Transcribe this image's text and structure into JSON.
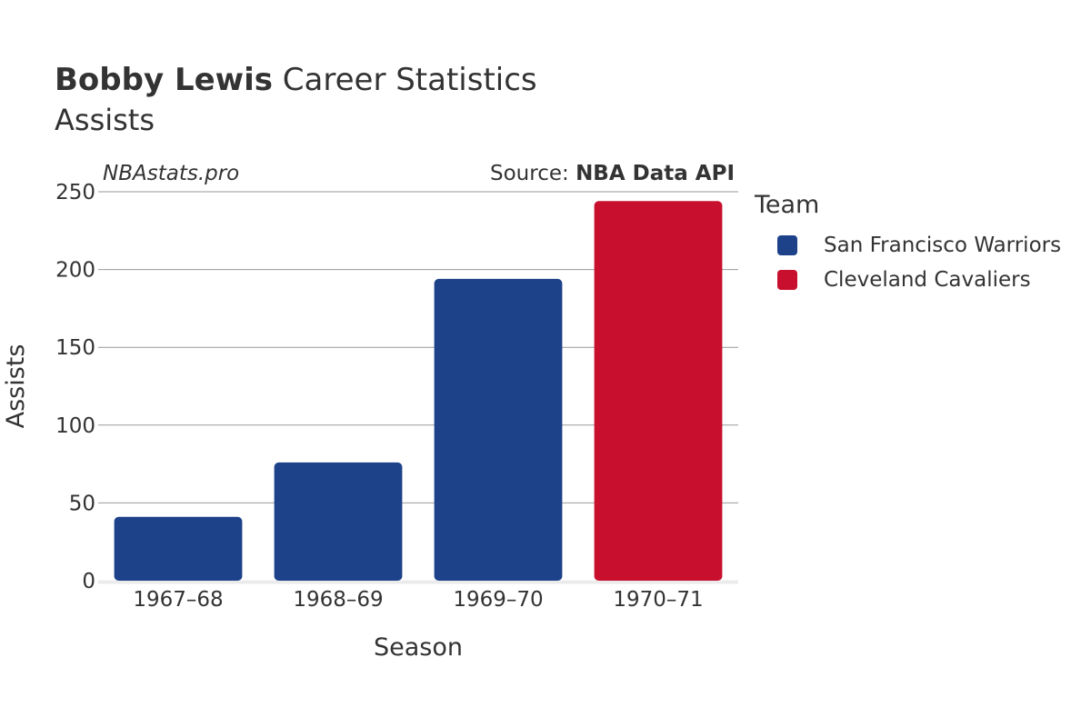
{
  "header": {
    "title_bold": "Bobby Lewis",
    "title_rest": "Career Statistics",
    "subtitle": "Assists",
    "watermark": "NBAstats.pro",
    "source_prefix": "Source:",
    "source_name": "NBA Data API"
  },
  "legend": {
    "title": "Team",
    "items": [
      {
        "label": "San Francisco Warriors",
        "color": "#1d428a"
      },
      {
        "label": "Cleveland Cavaliers",
        "color": "#c8102e"
      }
    ]
  },
  "chart_data": {
    "type": "bar",
    "title": "Bobby Lewis Career Statistics",
    "subtitle": "Assists",
    "xlabel": "Season",
    "ylabel": "Assists",
    "categories": [
      "1967–68",
      "1968–69",
      "1969–70",
      "1970–71"
    ],
    "values": [
      41,
      76,
      194,
      244
    ],
    "teams": [
      "San Francisco Warriors",
      "San Francisco Warriors",
      "San Francisco Warriors",
      "Cleveland Cavaliers"
    ],
    "colors": [
      "#1d428a",
      "#1d428a",
      "#1d428a",
      "#c8102e"
    ],
    "ylim": [
      0,
      250
    ],
    "yticks": [
      0,
      50,
      100,
      150,
      200,
      250
    ],
    "grid": true,
    "legend_position": "right"
  }
}
